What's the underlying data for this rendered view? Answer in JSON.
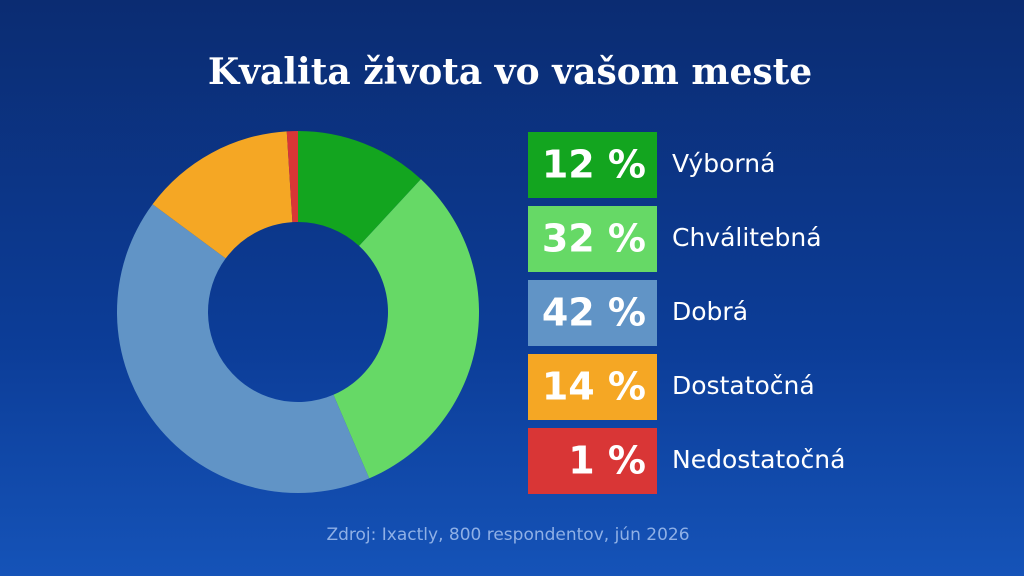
{
  "chart_data": {
    "type": "donut",
    "title": "Kvalita života vo vašom meste",
    "categories": [
      "Výborná",
      "Chválitebná",
      "Dobrá",
      "Dostatočná",
      "Nedostatočná"
    ],
    "values": [
      12,
      32,
      42,
      14,
      1
    ],
    "value_labels": [
      "12 %",
      "32 %",
      "42 %",
      "14 %",
      "1 %"
    ],
    "colors": [
      "#13a51f",
      "#66d966",
      "#6194c6",
      "#f5a724",
      "#d93636"
    ],
    "source": "Zdroj: Ixactly, 800 respondentov, jún 2026"
  }
}
